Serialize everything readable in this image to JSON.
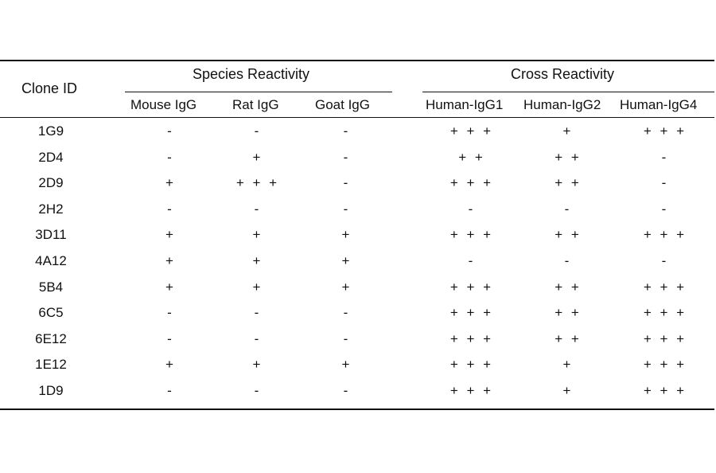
{
  "table": {
    "header": {
      "clone_id": "Clone ID",
      "species_group": "Species Reactivity",
      "cross_group": "Cross Reactivity",
      "columns": [
        "Mouse IgG",
        "Rat IgG",
        "Goat IgG",
        "Human-IgG1",
        "Human-IgG2",
        "Human-IgG4"
      ]
    },
    "rows": [
      {
        "id": "1G9",
        "values": [
          "-",
          "-",
          "-",
          "+ + +",
          "+",
          "+ + +"
        ]
      },
      {
        "id": "2D4",
        "values": [
          "-",
          "+",
          "-",
          "+ +",
          "+ +",
          "-"
        ]
      },
      {
        "id": "2D9",
        "values": [
          "+",
          "+ + +",
          "-",
          "+ + +",
          "+ +",
          "-"
        ]
      },
      {
        "id": "2H2",
        "values": [
          "-",
          "-",
          "-",
          "-",
          "-",
          "-"
        ]
      },
      {
        "id": "3D11",
        "values": [
          "+",
          "+",
          "+",
          "+ + +",
          "+ +",
          "+ + +"
        ]
      },
      {
        "id": "4A12",
        "values": [
          "+",
          "+",
          "+",
          "-",
          "-",
          "-"
        ]
      },
      {
        "id": "5B4",
        "values": [
          "+",
          "+",
          "+",
          "+ + +",
          "+ +",
          "+ + +"
        ]
      },
      {
        "id": "6C5",
        "values": [
          "-",
          "-",
          "-",
          "+ + +",
          "+ +",
          "+ + +"
        ]
      },
      {
        "id": "6E12",
        "values": [
          "-",
          "-",
          "-",
          "+ + +",
          "+ +",
          "+ + +"
        ]
      },
      {
        "id": "1E12",
        "values": [
          "+",
          "+",
          "+",
          "+ + +",
          "+",
          "+ + +"
        ]
      },
      {
        "id": "1D9",
        "values": [
          "-",
          "-",
          "-",
          "+ + +",
          "+",
          "+ + +"
        ]
      }
    ]
  }
}
